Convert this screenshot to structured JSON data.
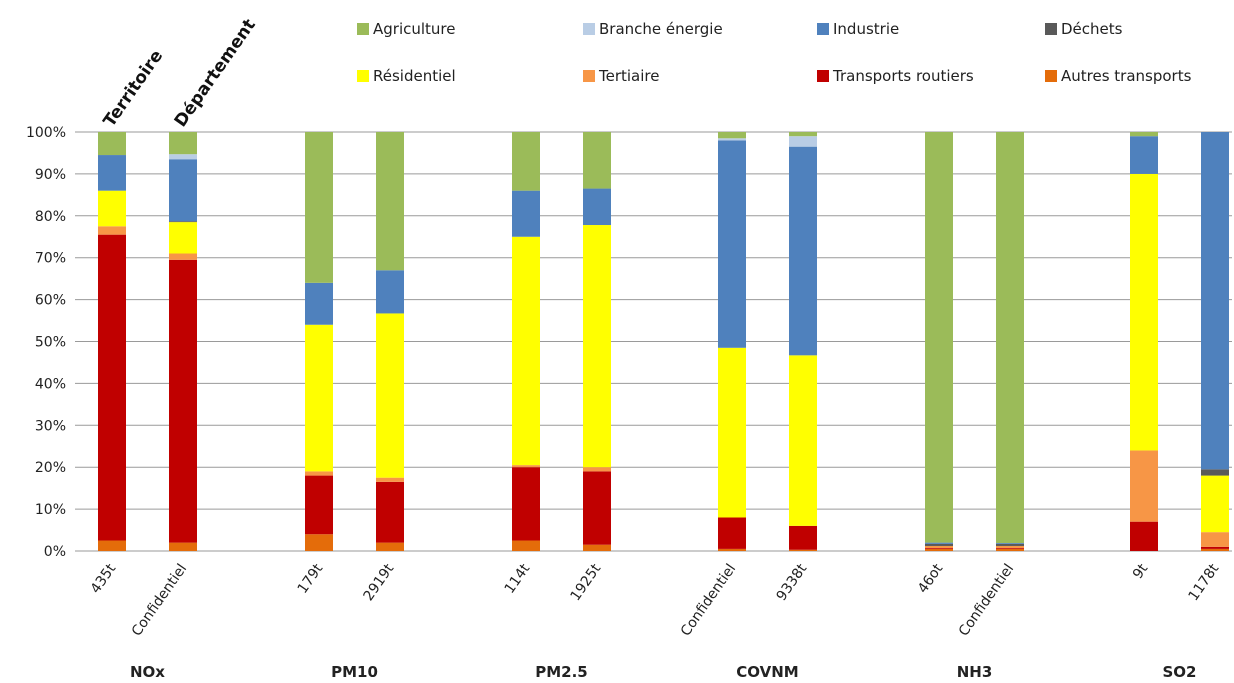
{
  "chart_data": {
    "type": "bar",
    "stacked": true,
    "ylim": [
      0,
      100
    ],
    "yticks": [
      "0%",
      "10%",
      "20%",
      "30%",
      "40%",
      "50%",
      "60%",
      "70%",
      "80%",
      "90%",
      "100%"
    ],
    "header_labels": [
      "Territoire",
      "Département"
    ],
    "legend": [
      {
        "name": "Agriculture",
        "color": "#9BBB59"
      },
      {
        "name": "Branche énergie",
        "color": "#B9CDE5"
      },
      {
        "name": "Industrie",
        "color": "#4F81BD"
      },
      {
        "name": "Déchets",
        "color": "#595959"
      },
      {
        "name": "Résidentiel",
        "color": "#FFFF00"
      },
      {
        "name": "Tertiaire",
        "color": "#F79646"
      },
      {
        "name": "Transports routiers",
        "color": "#C00000"
      },
      {
        "name": "Autres transports",
        "color": "#E46C0A"
      }
    ],
    "groups": [
      {
        "name": "NOx",
        "bars": [
          {
            "label": "435t",
            "segments": [
              2.5,
              73,
              2,
              8.5,
              0,
              8.5,
              0,
              5.5
            ]
          },
          {
            "label": "Confidentiel",
            "segments": [
              2,
              67.5,
              1.5,
              7.5,
              0.2,
              14.8,
              1.2,
              5.3
            ]
          }
        ]
      },
      {
        "name": "PM10",
        "bars": [
          {
            "label": "179t",
            "segments": [
              4,
              14,
              1,
              35,
              0,
              10,
              0,
              36
            ]
          },
          {
            "label": "2919t",
            "segments": [
              2,
              14.5,
              1,
              39.2,
              0,
              10.3,
              0,
              33
            ]
          }
        ]
      },
      {
        "name": "PM2.5",
        "bars": [
          {
            "label": "114t",
            "segments": [
              2.5,
              17.5,
              0.5,
              54.5,
              0,
              11,
              0,
              14
            ]
          },
          {
            "label": "1925t",
            "segments": [
              1.5,
              17.5,
              1,
              57.8,
              0,
              8.7,
              0,
              13.5
            ]
          }
        ]
      },
      {
        "name": "COVNM",
        "bars": [
          {
            "label": "Confidentiel",
            "segments": [
              0.5,
              7.5,
              0,
              40.5,
              0,
              49.5,
              0.5,
              1.5
            ]
          },
          {
            "label": "9338t",
            "segments": [
              0.3,
              5.7,
              0,
              40.7,
              0,
              49.8,
              2.5,
              1
            ]
          }
        ]
      },
      {
        "name": "NH3",
        "bars": [
          {
            "label": "46ot",
            "segments": [
              0.5,
              0.2,
              0.5,
              0,
              0.5,
              0.3,
              0,
              98
            ]
          },
          {
            "label": "Confidentiel",
            "segments": [
              0.5,
              0.2,
              0.5,
              0,
              0.5,
              0.2,
              0,
              98.1
            ]
          }
        ]
      },
      {
        "name": "SO2",
        "bars": [
          {
            "label": "9t",
            "segments": [
              0,
              7,
              17,
              66,
              0,
              9,
              0,
              1
            ]
          },
          {
            "label": "1178t",
            "segments": [
              0.5,
              0.5,
              3.5,
              13.5,
              1.5,
              80.5,
              0,
              0
            ]
          }
        ]
      }
    ],
    "segment_order": [
      "Autres transports",
      "Transports routiers",
      "Tertiaire",
      "Résidentiel",
      "Déchets",
      "Industrie",
      "Branche énergie",
      "Agriculture"
    ],
    "grid": true,
    "legend_position": "top"
  }
}
